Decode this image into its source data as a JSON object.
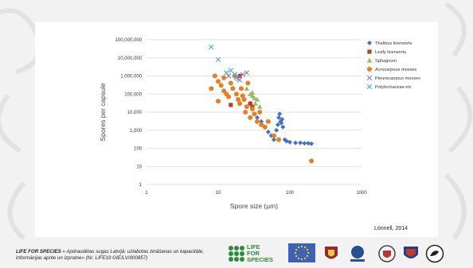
{
  "footer": {
    "brand": "LIFE FOR SPECIES",
    "text": "« Apdraudētas sugas Latvijā: uzlabotas zināšanas un kapacitāte, informācijas aprite un izpratne» (Nr. LIFE19 GIE/LV/000857)",
    "life_logo_line1": "LIFE",
    "life_logo_line2": "FOR",
    "life_logo_line3": "SPECIES",
    "latvijas_label": "LATVIJAS UNIVERSITĀTE"
  },
  "credit": "Lönnell, 2014",
  "colors": {
    "thallous": "#4472c4",
    "leafy": "#c0392b",
    "sphagnum": "#9bbb59",
    "acrocarpous": "#e67e22",
    "pleurocarpous": "#8e7cc3",
    "polytrichaceae": "#4bacc6"
  },
  "chart_data": {
    "type": "scatter",
    "xlabel": "Spore size (µm)",
    "ylabel": "Spores per capsule",
    "x_scale": "log",
    "y_scale": "log",
    "xlim": [
      1,
      1000
    ],
    "ylim": [
      1,
      100000000
    ],
    "x_ticks": [
      "1",
      "10",
      "100",
      "1000"
    ],
    "y_ticks": [
      "1",
      "10",
      "100",
      "1,000",
      "10,000",
      "100,000",
      "1,000,000",
      "10,000,000",
      "100,000,000"
    ],
    "legend_position": "right",
    "series": [
      {
        "name": "Thallous liverworts",
        "marker": "diamond",
        "points": [
          [
            30,
            20000
          ],
          [
            35,
            5000
          ],
          [
            40,
            3000
          ],
          [
            45,
            1500
          ],
          [
            50,
            800
          ],
          [
            55,
            500
          ],
          [
            60,
            300
          ],
          [
            65,
            1000
          ],
          [
            68,
            2000
          ],
          [
            70,
            5000
          ],
          [
            72,
            8000
          ],
          [
            74,
            3000
          ],
          [
            76,
            2500
          ],
          [
            78,
            4000
          ],
          [
            80,
            1500
          ],
          [
            85,
            300
          ],
          [
            90,
            250
          ],
          [
            100,
            220
          ],
          [
            120,
            200
          ],
          [
            140,
            200
          ],
          [
            160,
            190
          ],
          [
            180,
            190
          ],
          [
            200,
            180
          ]
        ]
      },
      {
        "name": "Leafy liverworts",
        "marker": "square",
        "points": [
          [
            15,
            25000
          ],
          [
            20,
            1000000
          ],
          [
            28,
            30000
          ],
          [
            30,
            20000
          ]
        ]
      },
      {
        "name": "Sphagnum",
        "marker": "triangle",
        "points": [
          [
            25,
            200000
          ],
          [
            28,
            100000
          ],
          [
            30,
            80000
          ],
          [
            32,
            60000
          ],
          [
            35,
            50000
          ],
          [
            33,
            30000
          ],
          [
            38,
            20000
          ],
          [
            30,
            120000
          ]
        ]
      },
      {
        "name": "Acrocarpous mosses",
        "marker": "circle",
        "points": [
          [
            8,
            200000
          ],
          [
            9,
            1000000
          ],
          [
            10,
            500000
          ],
          [
            10,
            40000
          ],
          [
            11,
            300000
          ],
          [
            12,
            800000
          ],
          [
            12,
            150000
          ],
          [
            13,
            100000
          ],
          [
            14,
            70000
          ],
          [
            15,
            400000
          ],
          [
            16,
            200000
          ],
          [
            17,
            1000000
          ],
          [
            18,
            100000
          ],
          [
            19,
            50000
          ],
          [
            20,
            30000
          ],
          [
            21,
            200000
          ],
          [
            22,
            80000
          ],
          [
            23,
            50000
          ],
          [
            24,
            10000
          ],
          [
            25,
            20000
          ],
          [
            26,
            400000
          ],
          [
            28,
            5000
          ],
          [
            30,
            15000
          ],
          [
            32,
            8000
          ],
          [
            35,
            3000
          ],
          [
            38,
            10000
          ],
          [
            40,
            2000
          ],
          [
            45,
            1500
          ],
          [
            50,
            3000
          ],
          [
            60,
            500
          ],
          [
            70,
            300
          ],
          [
            200,
            20
          ]
        ]
      },
      {
        "name": "Pleurocarpous mosses",
        "marker": "x",
        "points": [
          [
            14,
            1000000
          ],
          [
            18,
            800000
          ],
          [
            20,
            600000
          ],
          [
            22,
            1200000
          ],
          [
            25,
            1500000
          ]
        ]
      },
      {
        "name": "Polytrichaceae etc",
        "marker": "x",
        "points": [
          [
            8,
            40000000
          ],
          [
            10,
            8000000
          ],
          [
            13,
            1500000
          ],
          [
            15,
            2000000
          ],
          [
            17,
            1200000
          ],
          [
            19,
            700000
          ]
        ]
      }
    ]
  }
}
